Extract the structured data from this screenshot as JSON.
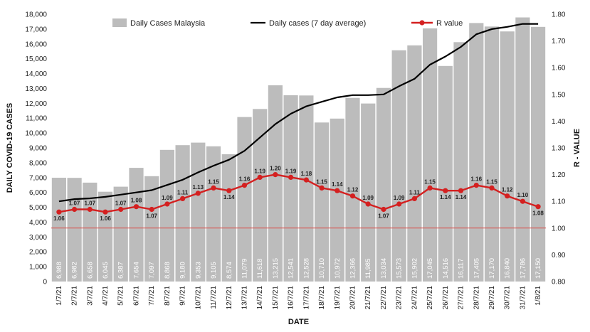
{
  "chart_data": {
    "type": "bar",
    "categories": [
      "1/7/21",
      "2/7/21",
      "3/7/21",
      "4/7/21",
      "5/7/21",
      "6/7/21",
      "7/7/21",
      "8/7/21",
      "9/7/21",
      "10/7/21",
      "11/7/21",
      "12/7/21",
      "13/7/21",
      "14/7/21",
      "15/7/21",
      "16/7/21",
      "17/7/21",
      "18/7/21",
      "19/7/21",
      "20/7/21",
      "21/7/21",
      "22/7/21",
      "23/7/21",
      "24/7/21",
      "25/7/21",
      "26/7/21",
      "27/7/21",
      "28/7/21",
      "29/7/21",
      "30/7/21",
      "31/7/21",
      "1/8/21"
    ],
    "series": [
      {
        "name": "Daily Cases Malaysia",
        "type": "bar",
        "axis": "left",
        "color": "#bcbcbc",
        "values": [
          6988,
          6982,
          6658,
          6045,
          6387,
          7654,
          7097,
          8868,
          9180,
          9353,
          9105,
          8574,
          11079,
          11618,
          13215,
          12541,
          12528,
          10710,
          10972,
          12366,
          11985,
          13034,
          15573,
          15902,
          17045,
          14516,
          16117,
          17405,
          17170,
          16840,
          17786,
          17150
        ],
        "labels": [
          "6,988",
          "6,982",
          "6,658",
          "6,045",
          "6,387",
          "7,654",
          "7,097",
          "8,868",
          "9,180",
          "9,353",
          "9,105",
          "8,574",
          "11,079",
          "11,618",
          "13,215",
          "12,541",
          "12,528",
          "10,710",
          "10,972",
          "12,366",
          "11,985",
          "13,034",
          "15,573",
          "15,902",
          "17,045",
          "14,516",
          "16,117",
          "17,405",
          "17,170",
          "16,840",
          "17,786",
          "17,150"
        ]
      },
      {
        "name": "Daily cases (7 day average)",
        "type": "line",
        "axis": "left",
        "color": "#000000",
        "values": [
          5400,
          5550,
          5600,
          5700,
          5850,
          6000,
          6150,
          6500,
          6850,
          7350,
          7800,
          8200,
          8800,
          9700,
          10600,
          11300,
          11800,
          12100,
          12400,
          12550,
          12550,
          12600,
          13150,
          13650,
          14600,
          15150,
          15800,
          16650,
          17000,
          17150,
          17350,
          17350
        ]
      },
      {
        "name": "R value",
        "type": "line",
        "axis": "right",
        "color": "#d42020",
        "values": [
          1.06,
          1.07,
          1.07,
          1.06,
          1.07,
          1.08,
          1.07,
          1.09,
          1.11,
          1.13,
          1.15,
          1.14,
          1.16,
          1.19,
          1.2,
          1.19,
          1.18,
          1.15,
          1.14,
          1.12,
          1.09,
          1.07,
          1.09,
          1.11,
          1.15,
          1.14,
          1.14,
          1.16,
          1.15,
          1.12,
          1.1,
          1.08
        ],
        "labels": [
          "1.06",
          "1.07",
          "1.07",
          "1.06",
          "1.07",
          "1.08",
          "1.07",
          "1.09",
          "1.11",
          "1.13",
          "1.15",
          "1.14",
          "1.16",
          "1.19",
          "1.20",
          "1.19",
          "1.18",
          "1.15",
          "1.14",
          "1.12",
          "1.09",
          "1.07",
          "1.09",
          "1.11",
          "1.15",
          "1.14",
          "1.14",
          "1.16",
          "1.15",
          "1.12",
          "1.10",
          "1.08"
        ]
      }
    ],
    "reference_line": {
      "axis": "right",
      "value": 1.0,
      "color": "#d9504a"
    },
    "xlabel": "DATE",
    "ylabel": "DAILY COVID-19 CASES",
    "ylabel_right": "R - VALUE",
    "ylim": [
      0,
      18000
    ],
    "ylim_right": [
      0.8,
      1.8
    ],
    "yticks": [
      "0",
      "1,000",
      "2,000",
      "3,000",
      "4,000",
      "5,000",
      "6,000",
      "7,000",
      "8,000",
      "9,000",
      "10,000",
      "11,000",
      "12,000",
      "13,000",
      "14,000",
      "15,000",
      "16,000",
      "17,000",
      "18,000"
    ],
    "yticks_right": [
      "0.80",
      "0.90",
      "1.00",
      "1.10",
      "1.20",
      "1.30",
      "1.40",
      "1.50",
      "1.60",
      "1.70",
      "1.80"
    ],
    "grid": false,
    "legend": "top"
  }
}
